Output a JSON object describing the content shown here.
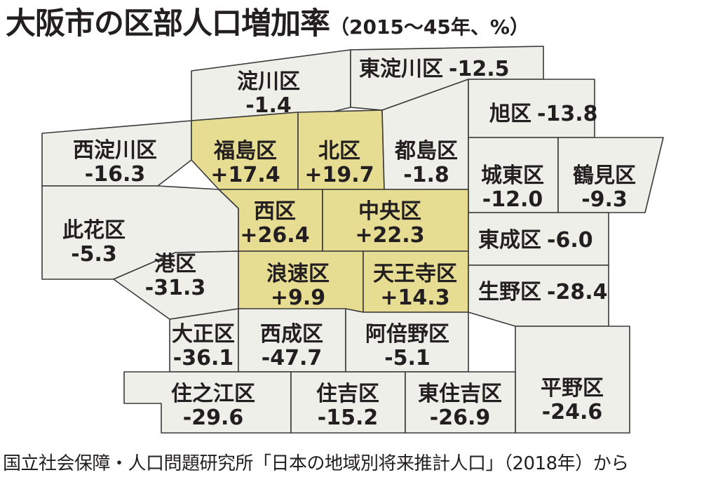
{
  "title": "大阪市の区部人口増加率",
  "subtitle": "（2015〜45年、%）",
  "source": "国立社会保障・人口問題研究所「日本の地域別将来推計人口」（2018年）から",
  "colors": {
    "increase": "#e6dd93",
    "decrease": "#efefea",
    "border": "#3a3a3a",
    "text": "#231f20"
  },
  "wards": [
    {
      "id": "yodogawa",
      "name": "淀川区",
      "value": "-1.4",
      "trend": "decrease"
    },
    {
      "id": "higashiyodogawa",
      "name": "東淀川区",
      "value": "-12.5",
      "trend": "decrease"
    },
    {
      "id": "nishiyodogawa",
      "name": "西淀川区",
      "value": "-16.3",
      "trend": "decrease"
    },
    {
      "id": "fukushima",
      "name": "福島区",
      "value": "+17.4",
      "trend": "increase"
    },
    {
      "id": "kita",
      "name": "北区",
      "value": "+19.7",
      "trend": "increase"
    },
    {
      "id": "miyakojima",
      "name": "都島区",
      "value": "-1.8",
      "trend": "decrease"
    },
    {
      "id": "asahi",
      "name": "旭区",
      "value": "-13.8",
      "trend": "decrease"
    },
    {
      "id": "joto",
      "name": "城東区",
      "value": "-12.0",
      "trend": "decrease"
    },
    {
      "id": "tsurumi",
      "name": "鶴見区",
      "value": "-9.3",
      "trend": "decrease"
    },
    {
      "id": "konohana",
      "name": "此花区",
      "value": "-5.3",
      "trend": "decrease"
    },
    {
      "id": "nishi",
      "name": "西区",
      "value": "+26.4",
      "trend": "increase"
    },
    {
      "id": "chuo",
      "name": "中央区",
      "value": "+22.3",
      "trend": "increase"
    },
    {
      "id": "higashinari",
      "name": "東成区",
      "value": "-6.0",
      "trend": "decrease"
    },
    {
      "id": "minato",
      "name": "港区",
      "value": "-31.3",
      "trend": "decrease"
    },
    {
      "id": "naniwa",
      "name": "浪速区",
      "value": "+9.9",
      "trend": "increase"
    },
    {
      "id": "tennoji",
      "name": "天王寺区",
      "value": "+14.3",
      "trend": "increase"
    },
    {
      "id": "ikuno",
      "name": "生野区",
      "value": "-28.4",
      "trend": "decrease"
    },
    {
      "id": "taisho",
      "name": "大正区",
      "value": "-36.1",
      "trend": "decrease"
    },
    {
      "id": "nishinari",
      "name": "西成区",
      "value": "-47.7",
      "trend": "decrease"
    },
    {
      "id": "abeno",
      "name": "阿倍野区",
      "value": "-5.1",
      "trend": "decrease"
    },
    {
      "id": "hirano",
      "name": "平野区",
      "value": "-24.6",
      "trend": "decrease"
    },
    {
      "id": "suminoe",
      "name": "住之江区",
      "value": "-29.6",
      "trend": "decrease"
    },
    {
      "id": "sumiyoshi",
      "name": "住吉区",
      "value": "-15.2",
      "trend": "decrease"
    },
    {
      "id": "higashisumiyoshi",
      "name": "東住吉区",
      "value": "-26.9",
      "trend": "decrease"
    }
  ]
}
